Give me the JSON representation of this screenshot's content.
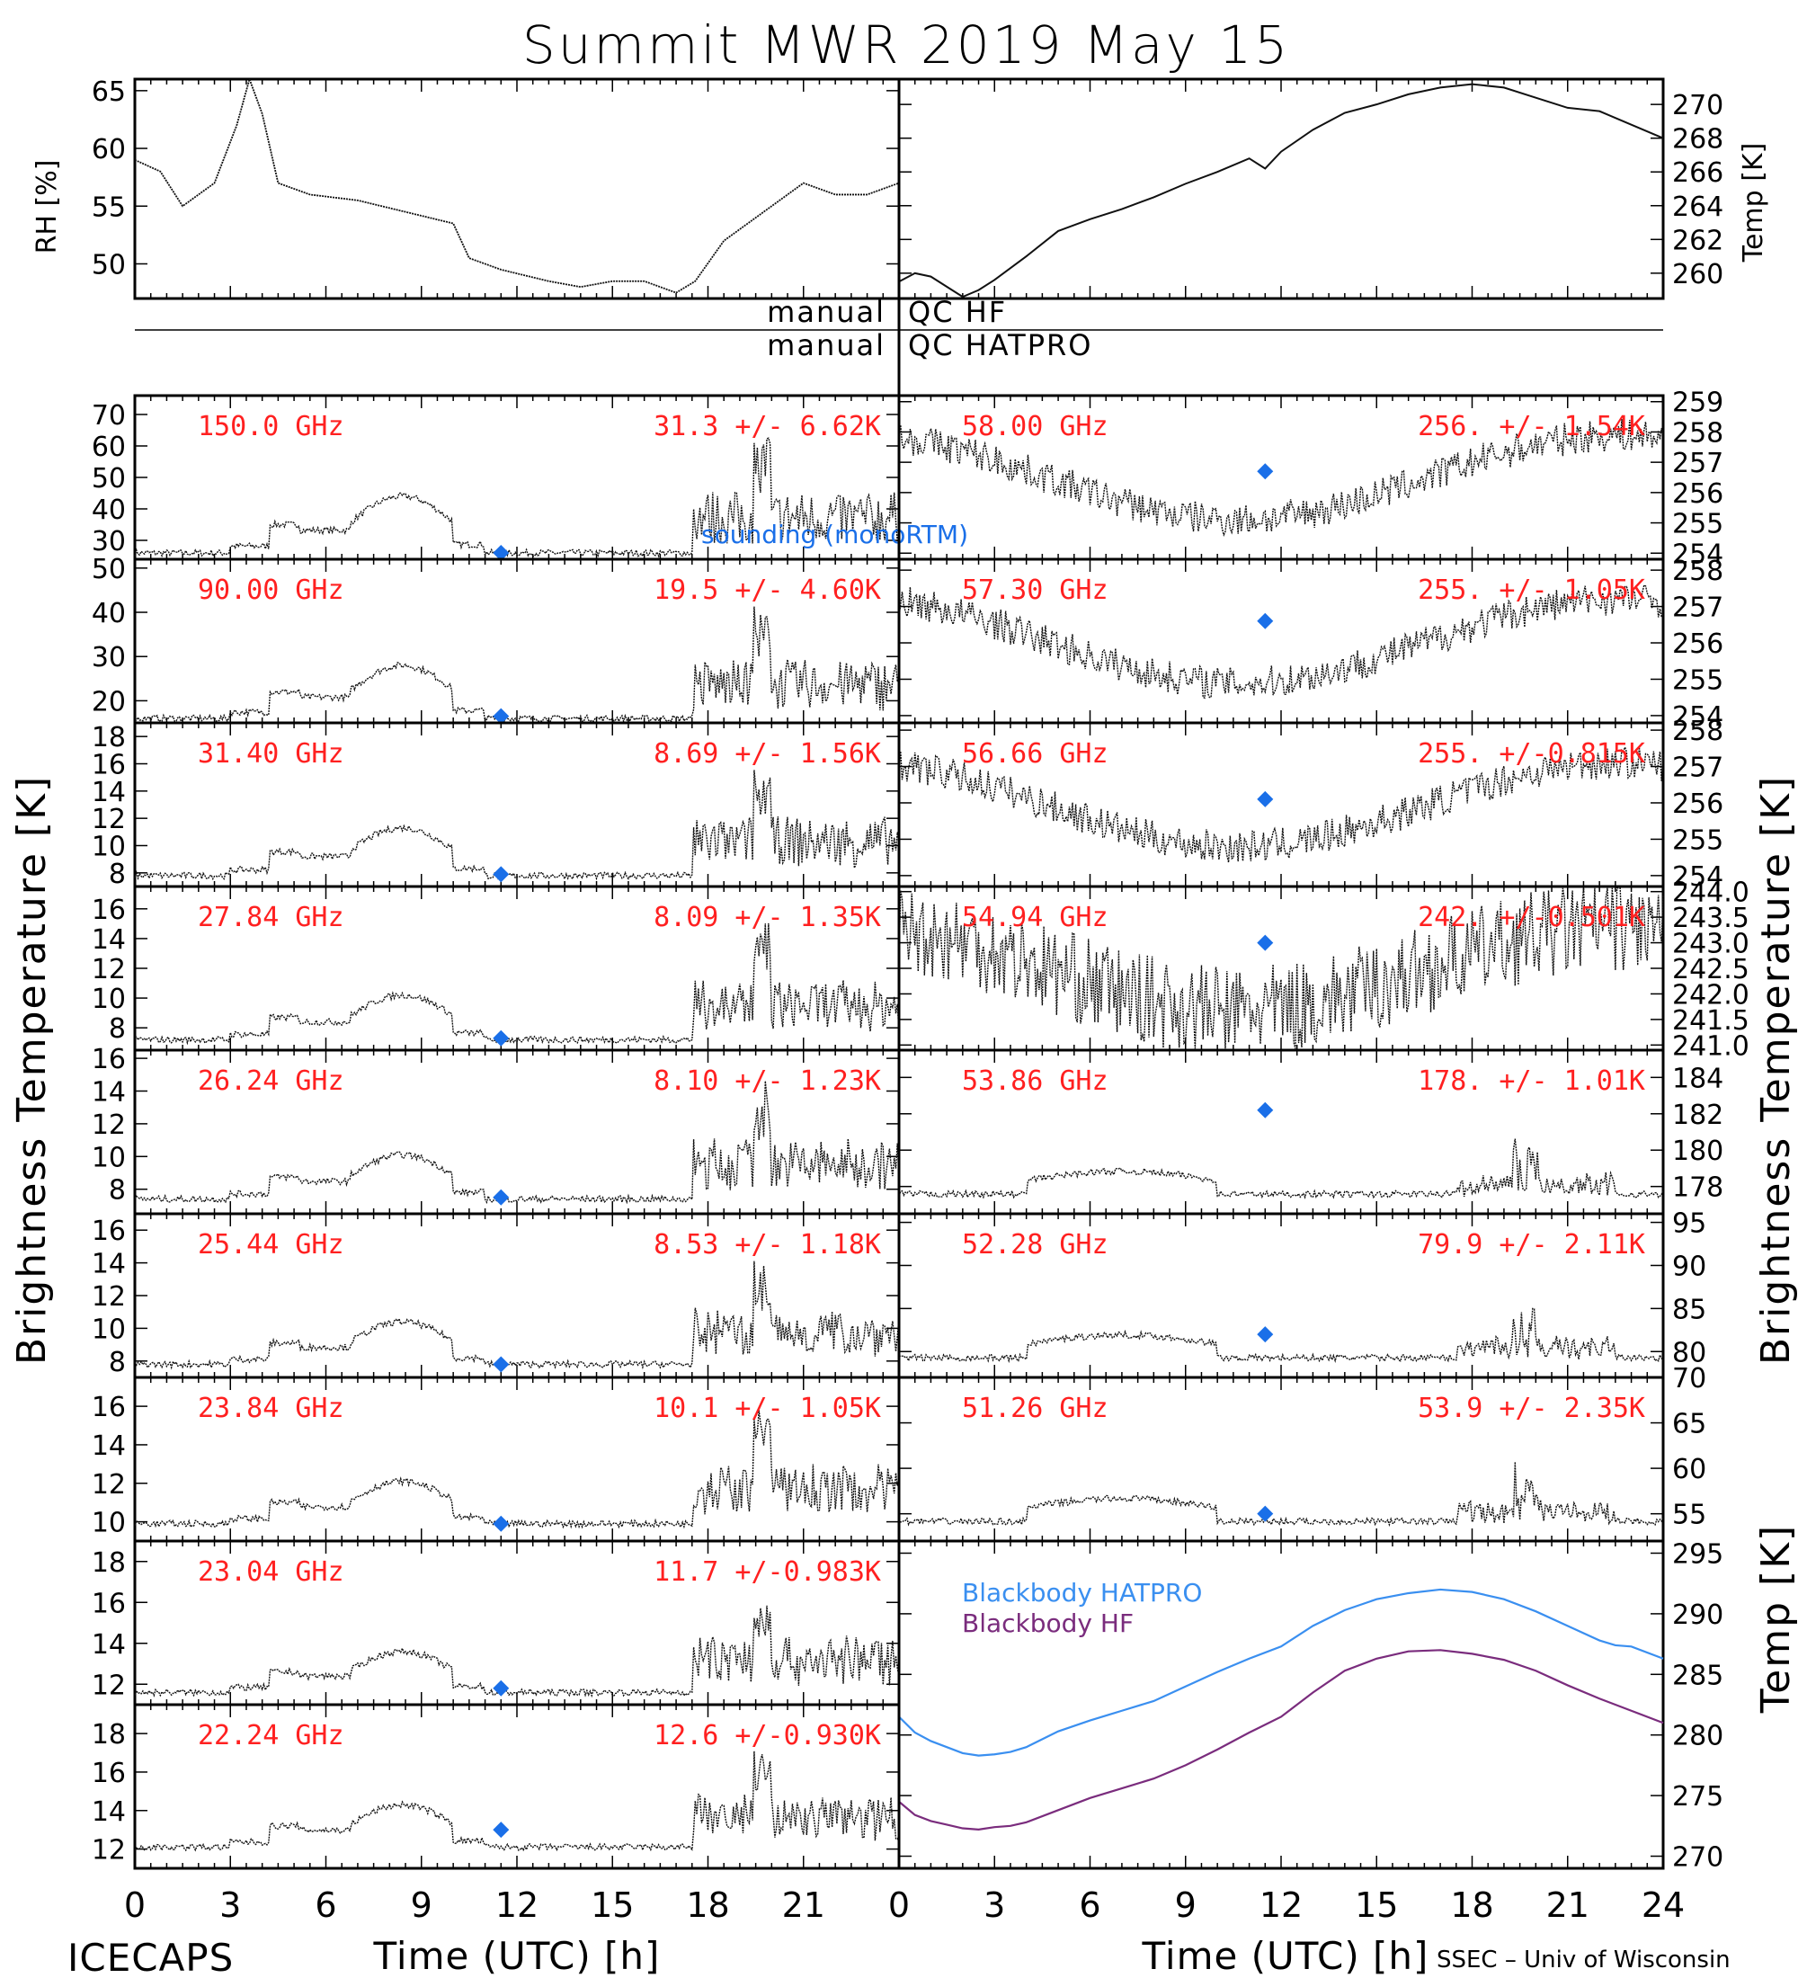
{
  "title": "Summit MWR 2019 May 15",
  "footer": {
    "left": "ICECAPS",
    "right": "SSEC – Univ of Wisconsin"
  },
  "qc_labels": [
    "manual",
    "QC  HF",
    "manual",
    "QC  HATPRO"
  ],
  "colors": {
    "trace": "#111111",
    "label_red": "#ff2020",
    "diamond": "#1a6fe8",
    "bb_hatpro": "#3a8ff0",
    "bb_hf": "#7a2c7d"
  },
  "axes": {
    "xlabel": "Time (UTC) [h]",
    "x_ticks": [
      "0",
      "3",
      "6",
      "9",
      "12",
      "15",
      "18",
      "21"
    ],
    "x_ticks_right": [
      "0",
      "3",
      "6",
      "9",
      "12",
      "15",
      "18",
      "21",
      "24"
    ],
    "left_ylabel": "Brightness Temperature [K]",
    "right_ylabel": "Brightness Temperature [K]",
    "rh_ylabel": "RH [%]",
    "temp_ylabel": "Temp [K]",
    "bb_ylabel": "Temp [K]"
  },
  "chart_data": [
    {
      "type": "line",
      "id": "rh",
      "ylabel": "RH [%]",
      "xlim": [
        0,
        24
      ],
      "ylim": [
        47,
        66
      ],
      "y_ticks": [
        "65",
        "60",
        "55",
        "50"
      ],
      "x": [
        0,
        0.8,
        1.5,
        2.5,
        3.2,
        3.6,
        4.0,
        4.5,
        5.5,
        7,
        8.5,
        10,
        10.5,
        11.5,
        13,
        14,
        15,
        16,
        17,
        17.6,
        18.5,
        20,
        21,
        22,
        23,
        24
      ],
      "y": [
        59,
        58,
        55,
        57,
        62,
        66,
        63,
        57,
        56,
        55.5,
        54.5,
        53.5,
        50.5,
        49.5,
        48.5,
        48,
        48.5,
        48.5,
        47.5,
        48.5,
        52,
        55,
        57,
        56,
        56,
        57
      ]
    },
    {
      "type": "line",
      "id": "temp",
      "ylabel": "Temp [K]",
      "xlim": [
        0,
        24
      ],
      "ylim": [
        258.5,
        271.5
      ],
      "y_ticks": [
        "270",
        "268",
        "266",
        "264",
        "262",
        "260"
      ],
      "x": [
        0,
        0.5,
        1,
        1.5,
        2,
        2.5,
        3,
        4,
        5,
        6,
        7,
        8,
        9,
        10,
        11,
        11.5,
        12,
        13,
        14,
        15,
        16,
        17,
        18,
        19,
        20,
        21,
        22,
        23,
        24
      ],
      "y": [
        259.5,
        260,
        259.8,
        259.2,
        258.6,
        259,
        259.6,
        261,
        262.5,
        263.2,
        263.8,
        264.5,
        265.3,
        266,
        266.8,
        266.2,
        267.2,
        268.5,
        269.5,
        270,
        270.6,
        271,
        271.2,
        271,
        270.4,
        269.8,
        269.6,
        268.8,
        268
      ]
    },
    {
      "type": "line",
      "freq": "150.0 GHz",
      "stats": "31.3 +/-  6.62K",
      "side": "left",
      "ylim": [
        24,
        76
      ],
      "y_ticks": [
        "70",
        "60",
        "50",
        "40",
        "30"
      ],
      "baseline": 26,
      "hump": 18,
      "spikes": 32,
      "sounding": {
        "x": 11.5,
        "y": 26
      },
      "legend": "sounding (monoRTM)"
    },
    {
      "type": "line",
      "freq": "90.00 GHz",
      "stats": "19.5 +/-  4.60K",
      "side": "left",
      "ylim": [
        15,
        52
      ],
      "y_ticks": [
        "50",
        "40",
        "30",
        "20"
      ],
      "baseline": 16,
      "hump": 12,
      "spikes": 22,
      "sounding": {
        "x": 11.5,
        "y": 16.5
      }
    },
    {
      "type": "line",
      "freq": "31.40 GHz",
      "stats": "8.69 +/-  1.56K",
      "side": "left",
      "ylim": [
        7,
        19
      ],
      "y_ticks": [
        "18",
        "16",
        "14",
        "12",
        "10",
        "8"
      ],
      "baseline": 7.8,
      "hump": 3.5,
      "spikes": 7,
      "sounding": {
        "x": 11.5,
        "y": 7.9
      }
    },
    {
      "type": "line",
      "freq": "27.84 GHz",
      "stats": "8.09 +/-  1.35K",
      "side": "left",
      "ylim": [
        6.5,
        17.5
      ],
      "y_ticks": [
        "16",
        "14",
        "12",
        "10",
        "8"
      ],
      "baseline": 7.2,
      "hump": 3,
      "spikes": 6.5,
      "sounding": {
        "x": 11.5,
        "y": 7.3
      }
    },
    {
      "type": "line",
      "freq": "26.24 GHz",
      "stats": "8.10 +/-  1.23K",
      "side": "left",
      "ylim": [
        6.5,
        16.5
      ],
      "y_ticks": [
        "16",
        "14",
        "12",
        "10",
        "8"
      ],
      "baseline": 7.4,
      "hump": 2.7,
      "spikes": 6,
      "sounding": {
        "x": 11.5,
        "y": 7.5
      }
    },
    {
      "type": "line",
      "freq": "25.44 GHz",
      "stats": "8.53 +/-  1.18K",
      "side": "left",
      "ylim": [
        7,
        17
      ],
      "y_ticks": [
        "16",
        "14",
        "12",
        "10",
        "8"
      ],
      "baseline": 7.8,
      "hump": 2.6,
      "spikes": 5.5,
      "sounding": {
        "x": 11.5,
        "y": 7.8
      }
    },
    {
      "type": "line",
      "freq": "23.84 GHz",
      "stats": "10.1 +/-  1.05K",
      "side": "left",
      "ylim": [
        9,
        17.5
      ],
      "y_ticks": [
        "16",
        "14",
        "12",
        "10"
      ],
      "baseline": 9.9,
      "hump": 2.2,
      "spikes": 5,
      "sounding": {
        "x": 11.5,
        "y": 9.9
      }
    },
    {
      "type": "line",
      "freq": "23.04 GHz",
      "stats": "11.7 +/-0.983K",
      "side": "left",
      "ylim": [
        11,
        19
      ],
      "y_ticks": [
        "18",
        "16",
        "14",
        "12"
      ],
      "baseline": 11.6,
      "hump": 2,
      "spikes": 4.5,
      "sounding": {
        "x": 11.5,
        "y": 11.8
      }
    },
    {
      "type": "line",
      "freq": "22.24 GHz",
      "stats": "12.6 +/-0.930K",
      "side": "left",
      "ylim": [
        11,
        19.5
      ],
      "y_ticks": [
        "18",
        "16",
        "14",
        "12"
      ],
      "baseline": 12.1,
      "hump": 2.2,
      "spikes": 4.5,
      "sounding": {
        "x": 11.5,
        "y": 13
      }
    },
    {
      "type": "line",
      "freq": "58.00 GHz",
      "stats": "256. +/- 1.54K",
      "side": "right",
      "ylim": [
        253.8,
        259.2
      ],
      "y_ticks": [
        "259",
        "258",
        "257",
        "256",
        "255",
        "254"
      ],
      "sounding": {
        "x": 11.5,
        "y": 256.7
      }
    },
    {
      "type": "line",
      "freq": "57.30 GHz",
      "stats": "255. +/- 1.05K",
      "side": "right",
      "ylim": [
        253.8,
        258.3
      ],
      "y_ticks": [
        "258",
        "257",
        "256",
        "255",
        "254"
      ],
      "sounding": {
        "x": 11.5,
        "y": 256.6
      }
    },
    {
      "type": "line",
      "freq": "56.66 GHz",
      "stats": "255. +/-0.815K",
      "side": "right",
      "ylim": [
        253.7,
        258.2
      ],
      "y_ticks": [
        "258",
        "257",
        "256",
        "255",
        "254"
      ],
      "sounding": {
        "x": 11.5,
        "y": 256.1
      }
    },
    {
      "type": "line",
      "freq": "54.94 GHz",
      "stats": "242. +/-0.501K",
      "side": "right",
      "ylim": [
        240.9,
        244.1
      ],
      "y_ticks": [
        "244.0",
        "243.5",
        "243.0",
        "242.5",
        "242.0",
        "241.5",
        "241.0"
      ],
      "sounding": {
        "x": 11.5,
        "y": 243
      }
    },
    {
      "type": "line",
      "freq": "53.86 GHz",
      "stats": "178. +/- 1.01K",
      "side": "right",
      "ylim": [
        176.5,
        185.5
      ],
      "y_ticks": [
        "184",
        "182",
        "180",
        "178"
      ],
      "sounding": {
        "x": 11.5,
        "y": 182.2
      }
    },
    {
      "type": "line",
      "freq": "52.28 GHz",
      "stats": "79.9 +/- 2.11K",
      "side": "right",
      "ylim": [
        77,
        96
      ],
      "y_ticks": [
        "95",
        "90",
        "85",
        "80"
      ],
      "sounding": {
        "x": 11.5,
        "y": 82
      }
    },
    {
      "type": "line",
      "freq": "51.26 GHz",
      "stats": "53.9 +/- 2.35K",
      "side": "right",
      "ylim": [
        52,
        70
      ],
      "y_ticks": [
        "70",
        "65",
        "60",
        "55"
      ],
      "sounding": {
        "x": 11.5,
        "y": 55
      }
    },
    {
      "type": "line",
      "id": "blackbody",
      "ylabel": "Temp [K]",
      "xlim": [
        0,
        24
      ],
      "ylim": [
        269,
        296
      ],
      "y_ticks": [
        "295",
        "290",
        "285",
        "280",
        "275",
        "270"
      ],
      "series": [
        {
          "name": "Blackbody HATPRO",
          "x": [
            0,
            0.5,
            1,
            1.5,
            2,
            2.5,
            3,
            3.5,
            4,
            5,
            6,
            7,
            8,
            9,
            10,
            11,
            12,
            13,
            14,
            15,
            16,
            17,
            18,
            19,
            20,
            21,
            22,
            22.5,
            23,
            24
          ],
          "y": [
            281.5,
            280.2,
            279.5,
            279,
            278.5,
            278.3,
            278.4,
            278.6,
            279,
            280.3,
            281.2,
            282,
            282.8,
            284,
            285.2,
            286.3,
            287.3,
            289,
            290.3,
            291.2,
            291.7,
            292,
            291.8,
            291.2,
            290.2,
            289,
            287.8,
            287.4,
            287.3,
            286.3
          ]
        },
        {
          "name": "Blackbody HF",
          "x": [
            0,
            0.5,
            1,
            1.5,
            2,
            2.5,
            3,
            3.5,
            4,
            5,
            6,
            7,
            8,
            9,
            10,
            11,
            12,
            13,
            14,
            15,
            16,
            17,
            18,
            19,
            20,
            21,
            22,
            22.5,
            23,
            24
          ],
          "y": [
            274.5,
            273.4,
            272.9,
            272.6,
            272.3,
            272.2,
            272.4,
            272.5,
            272.8,
            273.8,
            274.8,
            275.6,
            276.4,
            277.5,
            278.8,
            280.2,
            281.5,
            283.5,
            285.3,
            286.3,
            286.9,
            287,
            286.7,
            286.2,
            285.3,
            284.1,
            283,
            282.5,
            282,
            281
          ]
        }
      ]
    }
  ]
}
